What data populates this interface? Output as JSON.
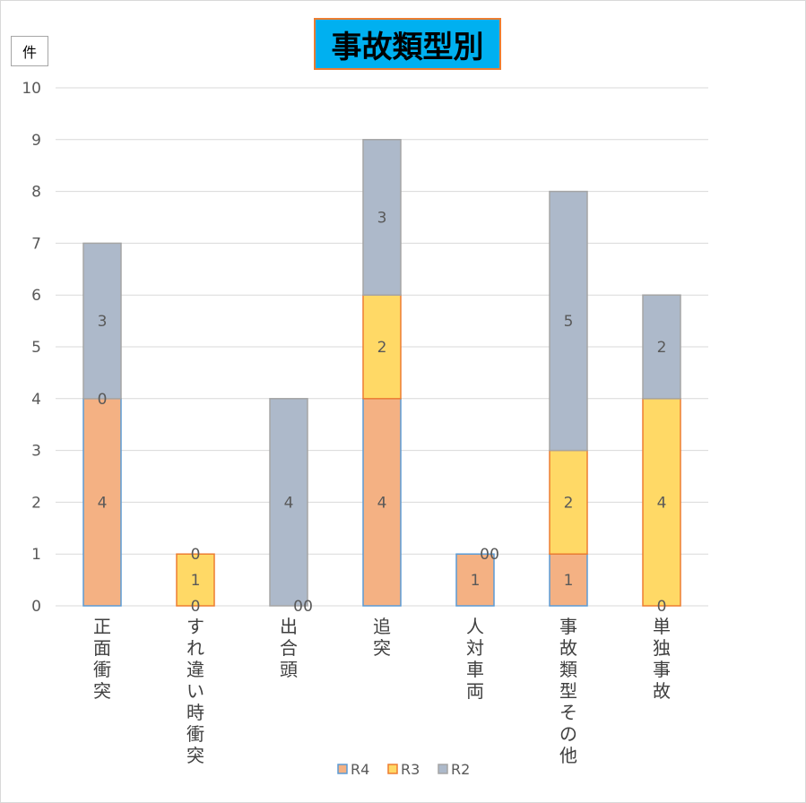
{
  "chart_data": {
    "type": "bar",
    "stacked": true,
    "title": "事故類型別",
    "ylabel": "件",
    "ylim": [
      0,
      10
    ],
    "yticks": [
      0,
      1,
      2,
      3,
      4,
      5,
      6,
      7,
      8,
      9,
      10
    ],
    "grid": true,
    "legend": "bottom",
    "categories": [
      "正面衝突",
      "すれ違い時衝突",
      "出合頭",
      "追突",
      "人対車両",
      "事故類型その他",
      "単独事故"
    ],
    "series": [
      {
        "name": "R4",
        "values": [
          4,
          0,
          0,
          4,
          1,
          1,
          0
        ],
        "color": "#f4b183",
        "border": "#5b9bd5"
      },
      {
        "name": "R3",
        "values": [
          0,
          1,
          0,
          2,
          0,
          2,
          4
        ],
        "color": "#ffd966",
        "border": "#ed7d31"
      },
      {
        "name": "R2",
        "values": [
          3,
          0,
          4,
          3,
          0,
          5,
          2
        ],
        "color": "#adb9ca",
        "border": "#a5a5a5"
      }
    ]
  }
}
